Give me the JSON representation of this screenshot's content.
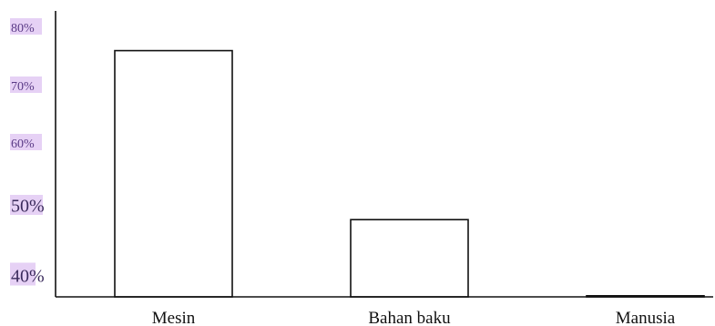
{
  "chart_data": {
    "type": "bar",
    "title": "",
    "xlabel": "",
    "ylabel": "",
    "categories": [
      "Mesin",
      "Bahan baku",
      "Manusia"
    ],
    "values": [
      76,
      48,
      37
    ],
    "y_tick_labels": [
      "80%",
      "70%",
      "60%",
      "50%",
      "40%"
    ],
    "y_ticks": [
      80,
      70,
      60,
      50,
      40
    ],
    "ylim": [
      35,
      81
    ],
    "grid": false,
    "legend": "none",
    "colors": {
      "bar_fill": "#ffffff",
      "bar_stroke": "#111111",
      "tick_highlight": "#e6d1f5",
      "tick_text": "#5a3a86"
    }
  }
}
